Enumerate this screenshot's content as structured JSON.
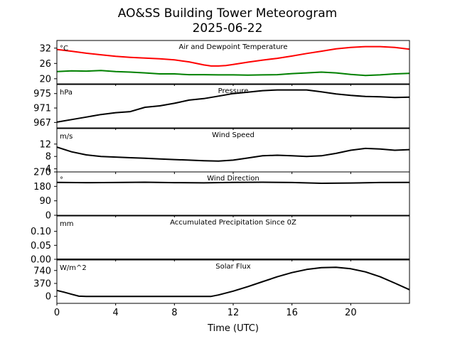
{
  "figure": {
    "title_line1": "AO&SS Building Tower Meteorogram",
    "title_line2": "2025-06-22",
    "xlabel": "Time (UTC)",
    "xlim": [
      0,
      24
    ],
    "xticks": [
      0,
      4,
      8,
      12,
      16,
      20
    ]
  },
  "colors": {
    "temperature": "#ff0000",
    "dewpoint": "#008000",
    "default": "#000000"
  },
  "chart_data": [
    {
      "type": "line",
      "title": "Air and Dewpoint Temperature",
      "unit": "°C",
      "ylim": [
        18,
        35
      ],
      "yticks": [
        20,
        26,
        32
      ],
      "series": [
        {
          "key": "temperature",
          "points": [
            [
              0,
              31.5
            ],
            [
              1,
              30.8
            ],
            [
              2,
              30.0
            ],
            [
              3,
              29.4
            ],
            [
              4,
              28.8
            ],
            [
              5,
              28.4
            ],
            [
              6,
              28.1
            ],
            [
              7,
              27.8
            ],
            [
              8,
              27.4
            ],
            [
              9,
              26.6
            ],
            [
              10,
              25.4
            ],
            [
              10.5,
              25.0
            ],
            [
              11,
              25.0
            ],
            [
              11.5,
              25.2
            ],
            [
              12,
              25.6
            ],
            [
              13,
              26.5
            ],
            [
              14,
              27.3
            ],
            [
              15,
              28.0
            ],
            [
              16,
              28.9
            ],
            [
              17,
              29.9
            ],
            [
              18,
              30.8
            ],
            [
              19,
              31.7
            ],
            [
              20,
              32.3
            ],
            [
              21,
              32.6
            ],
            [
              22,
              32.6
            ],
            [
              23,
              32.3
            ],
            [
              24,
              31.6
            ]
          ]
        },
        {
          "key": "dewpoint",
          "points": [
            [
              0,
              22.8
            ],
            [
              1,
              23.1
            ],
            [
              2,
              23.0
            ],
            [
              3,
              23.2
            ],
            [
              4,
              22.8
            ],
            [
              5,
              22.6
            ],
            [
              6,
              22.3
            ],
            [
              7,
              21.9
            ],
            [
              8,
              21.9
            ],
            [
              9,
              21.6
            ],
            [
              10,
              21.6
            ],
            [
              11,
              21.5
            ],
            [
              12,
              21.5
            ],
            [
              13,
              21.4
            ],
            [
              14,
              21.5
            ],
            [
              15,
              21.6
            ],
            [
              16,
              22.0
            ],
            [
              17,
              22.3
            ],
            [
              18,
              22.6
            ],
            [
              19,
              22.3
            ],
            [
              20,
              21.7
            ],
            [
              21,
              21.3
            ],
            [
              22,
              21.5
            ],
            [
              23,
              21.9
            ],
            [
              24,
              22.1
            ]
          ]
        }
      ]
    },
    {
      "type": "line",
      "title": "Pressure",
      "unit": "hPa",
      "ylim": [
        965.5,
        977.5
      ],
      "yticks": [
        967,
        971,
        975
      ],
      "series": [
        {
          "key": "default",
          "points": [
            [
              0,
              967.1
            ],
            [
              1,
              967.8
            ],
            [
              2,
              968.5
            ],
            [
              3,
              969.2
            ],
            [
              4,
              969.7
            ],
            [
              5,
              970.0
            ],
            [
              6,
              971.2
            ],
            [
              7,
              971.6
            ],
            [
              8,
              972.3
            ],
            [
              9,
              973.2
            ],
            [
              10,
              973.6
            ],
            [
              11,
              974.3
            ],
            [
              12,
              975.0
            ],
            [
              13,
              975.4
            ],
            [
              14,
              975.8
            ],
            [
              15,
              976.0
            ],
            [
              16,
              976.0
            ],
            [
              17,
              976.0
            ],
            [
              18,
              975.5
            ],
            [
              19,
              974.9
            ],
            [
              20,
              974.5
            ],
            [
              21,
              974.2
            ],
            [
              22,
              974.1
            ],
            [
              23,
              973.9
            ],
            [
              24,
              974.0
            ]
          ]
        }
      ]
    },
    {
      "type": "line",
      "title": "Wind Speed",
      "unit": "m/s",
      "ylim": [
        3,
        17
      ],
      "yticks": [
        4,
        8,
        12
      ],
      "series": [
        {
          "key": "default",
          "points": [
            [
              0,
              11
            ],
            [
              1,
              9.5
            ],
            [
              2,
              8.5
            ],
            [
              3,
              8
            ],
            [
              4,
              7.8
            ],
            [
              5,
              7.6
            ],
            [
              6,
              7.4
            ],
            [
              7,
              7.2
            ],
            [
              8,
              7
            ],
            [
              9,
              6.8
            ],
            [
              10,
              6.6
            ],
            [
              11,
              6.5
            ],
            [
              12,
              6.8
            ],
            [
              13,
              7.5
            ],
            [
              14,
              8.2
            ],
            [
              15,
              8.4
            ],
            [
              16,
              8.2
            ],
            [
              17,
              8.0
            ],
            [
              18,
              8.2
            ],
            [
              19,
              9.0
            ],
            [
              20,
              10.0
            ],
            [
              21,
              10.6
            ],
            [
              22,
              10.4
            ],
            [
              23,
              10.0
            ],
            [
              24,
              10.2
            ]
          ]
        }
      ]
    },
    {
      "type": "line",
      "title": "Wind Direction",
      "unit": "°",
      "ylim": [
        0,
        270
      ],
      "yticks": [
        0,
        90,
        180,
        270
      ],
      "series": [
        {
          "key": "default",
          "points": [
            [
              0,
              205
            ],
            [
              2,
              203
            ],
            [
              4,
              204
            ],
            [
              6,
              206
            ],
            [
              8,
              203
            ],
            [
              10,
              202
            ],
            [
              12,
              205
            ],
            [
              14,
              206
            ],
            [
              16,
              204
            ],
            [
              18,
              199
            ],
            [
              20,
              201
            ],
            [
              22,
              204
            ],
            [
              24,
              205
            ]
          ]
        }
      ]
    },
    {
      "type": "line",
      "title": "Accumulated Precipitation Since 0Z",
      "unit": "mm",
      "ylim": [
        0,
        0.155
      ],
      "yticks": [
        0.0,
        0.05,
        0.1
      ],
      "series": [
        {
          "key": "default",
          "points": [
            [
              0,
              0
            ],
            [
              24,
              0
            ]
          ]
        }
      ]
    },
    {
      "type": "line",
      "title": "Solar Flux",
      "unit": "W/m^2",
      "ylim": [
        -200,
        1040
      ],
      "yticks": [
        0,
        370,
        740
      ],
      "series": [
        {
          "key": "default",
          "points": [
            [
              0,
              170
            ],
            [
              0.5,
              120
            ],
            [
              1,
              60
            ],
            [
              1.5,
              5
            ],
            [
              2,
              0
            ],
            [
              10.5,
              0
            ],
            [
              11,
              40
            ],
            [
              12,
              150
            ],
            [
              13,
              280
            ],
            [
              14,
              420
            ],
            [
              15,
              560
            ],
            [
              16,
              680
            ],
            [
              17,
              770
            ],
            [
              18,
              820
            ],
            [
              19,
              830
            ],
            [
              20,
              790
            ],
            [
              21,
              700
            ],
            [
              22,
              560
            ],
            [
              23,
              380
            ],
            [
              24,
              190
            ]
          ]
        }
      ]
    }
  ]
}
